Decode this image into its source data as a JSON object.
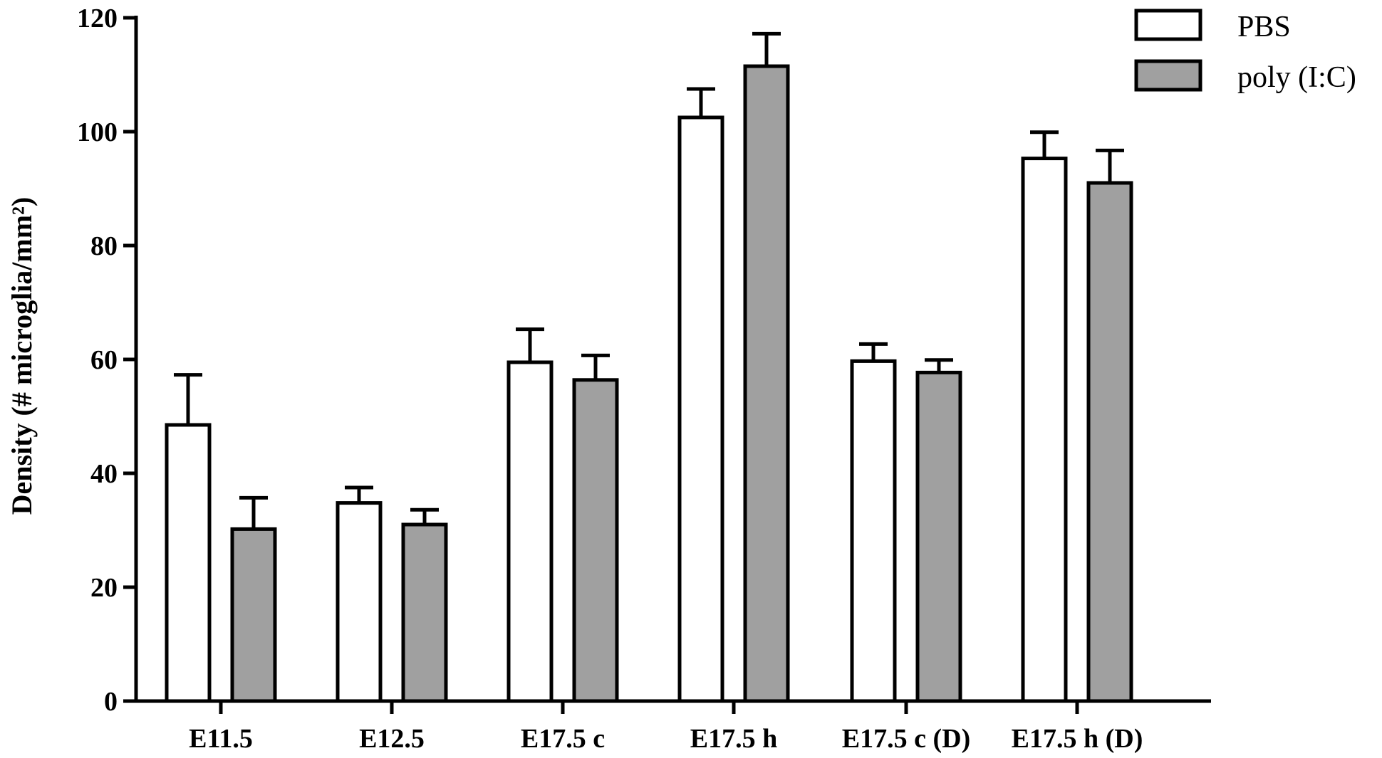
{
  "chart_data": {
    "type": "bar",
    "title": "",
    "xlabel": "",
    "ylabel": "Density (# microglia/mm²)",
    "ylim": [
      0,
      120
    ],
    "yticks": [
      0,
      20,
      40,
      60,
      80,
      100,
      120
    ],
    "grid": false,
    "legend_position": "top-right",
    "categories": [
      "E11.5",
      "E12.5",
      "E17.5 c",
      "E17.5 h",
      "E17.5 c (D)",
      "E17.5 h (D)"
    ],
    "series": [
      {
        "name": "PBS",
        "color": "#ffffff",
        "values": [
          48.5,
          34.8,
          59.5,
          102.5,
          59.7,
          95.3
        ],
        "errors": [
          8.8,
          2.7,
          5.8,
          5.0,
          3.0,
          4.6
        ]
      },
      {
        "name": "poly (I:C)",
        "color": "#a0a0a0",
        "values": [
          30.2,
          31.0,
          56.4,
          111.5,
          57.7,
          91.0
        ],
        "errors": [
          5.5,
          2.6,
          4.3,
          5.7,
          2.2,
          5.7
        ]
      }
    ]
  }
}
